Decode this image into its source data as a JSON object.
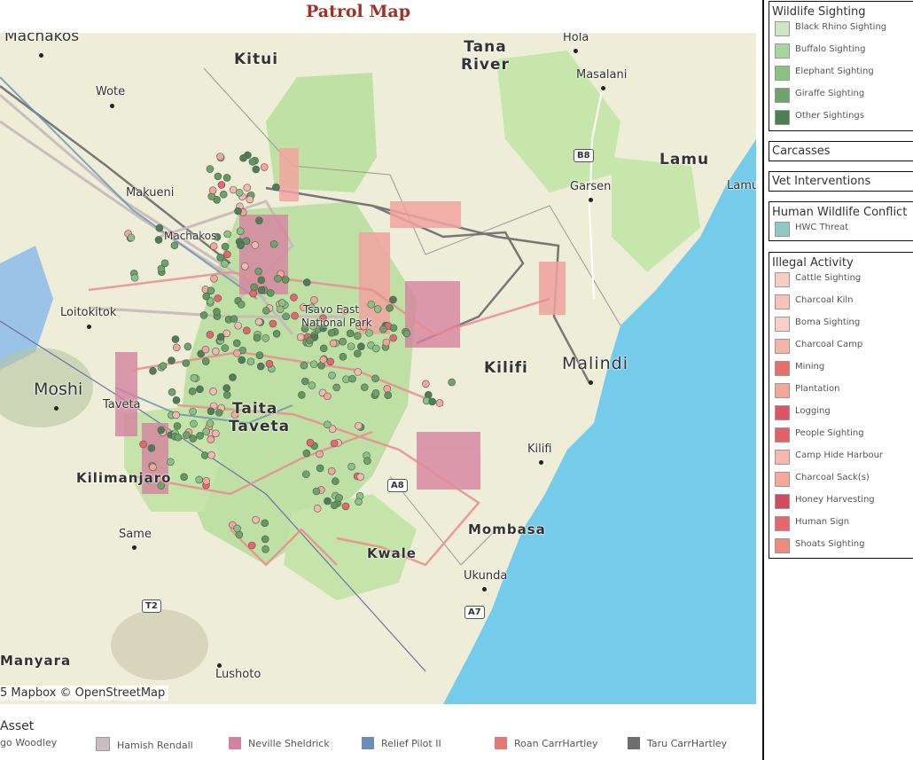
{
  "title": "Patrol Map",
  "map": {
    "attribution": "5 Mapbox © OpenStreetMap",
    "places": {
      "machakos": "Machakos",
      "kitui": "Kitui",
      "tana_river": "Tana\nRiver",
      "hola": "Hola",
      "masalani": "Masalani",
      "wote": "Wote",
      "lamu": "Lamu",
      "lamu_town": "Lamu",
      "garsen": "Garsen",
      "makueni": "Makueni",
      "machakos_ry": "Machakos",
      "loitokitok": "Loitokitok",
      "tsavo_east": "Tsavo East",
      "national_park": "National Park",
      "kilifi_county": "Kilifi",
      "malindi": "Malindi",
      "moshi": "Moshi",
      "taveta": "Taveta",
      "taita": "Taita",
      "taveta_county": "Taveta",
      "kilifi_town": "Kilifi",
      "kilimanjaro": "Kilimanjaro",
      "mombasa": "Mombasa",
      "same": "Same",
      "kwale": "Kwale",
      "ukunda": "Ukunda",
      "manyara": "Manyara",
      "lushoto": "Lushoto"
    },
    "roads": {
      "b8": "B8",
      "a8": "A8",
      "a7": "A7",
      "t2": "T2"
    }
  },
  "asset_legend": {
    "title": "Asset",
    "items": [
      {
        "label": "go Woodley",
        "color": "#a8c4a4"
      },
      {
        "label": "Hamish Rendall",
        "color": "#c9bdbd"
      },
      {
        "label": "Neville Sheldrick",
        "color": "#d4829f"
      },
      {
        "label": "Relief Pilot II",
        "color": "#6c8db6"
      },
      {
        "label": "Roan CarrHartley",
        "color": "#e17a72"
      },
      {
        "label": "Taru CarrHartley",
        "color": "#6e6e70"
      }
    ]
  },
  "legend": {
    "wildlife": {
      "title": "Wildlife Sighting",
      "items": [
        {
          "label": "Black Rhino Sighting",
          "color": "#cde7c5"
        },
        {
          "label": "Buffalo Sighting",
          "color": "#a7d59e"
        },
        {
          "label": "Elephant Sighting",
          "color": "#8bc283"
        },
        {
          "label": "Giraffe Sighting",
          "color": "#6ea46b"
        },
        {
          "label": "Other Sightings",
          "color": "#4f7e56"
        }
      ]
    },
    "carcasses": {
      "title": "Carcasses"
    },
    "vet": {
      "title": "Vet Interventions"
    },
    "hwc": {
      "title": "Human Wildlife Conflict",
      "items": [
        {
          "label": "HWC Threat",
          "color": "#8ec9c4"
        }
      ]
    },
    "illegal": {
      "title": "Illegal Activity",
      "items": [
        {
          "label": "Cattle Sighting",
          "color": "#f8cbc5"
        },
        {
          "label": "Charcoal Kiln",
          "color": "#f8c2bb"
        },
        {
          "label": "Boma Sighting",
          "color": "#f9cfca"
        },
        {
          "label": "Charcoal Camp",
          "color": "#f6b3a8"
        },
        {
          "label": "Mining",
          "color": "#e96e6b"
        },
        {
          "label": "Plantation",
          "color": "#f3a79b"
        },
        {
          "label": "Logging",
          "color": "#dc5566"
        },
        {
          "label": "People Sighting",
          "color": "#e2606a"
        },
        {
          "label": "Camp Hide Harbour",
          "color": "#f6b8ae"
        },
        {
          "label": "Charcoal Sack(s)",
          "color": "#f5a99b"
        },
        {
          "label": "Honey Harvesting",
          "color": "#d24a5d"
        },
        {
          "label": "Human Sign",
          "color": "#e5676c"
        },
        {
          "label": "Shoats Sighting",
          "color": "#ef8a80"
        }
      ]
    }
  }
}
